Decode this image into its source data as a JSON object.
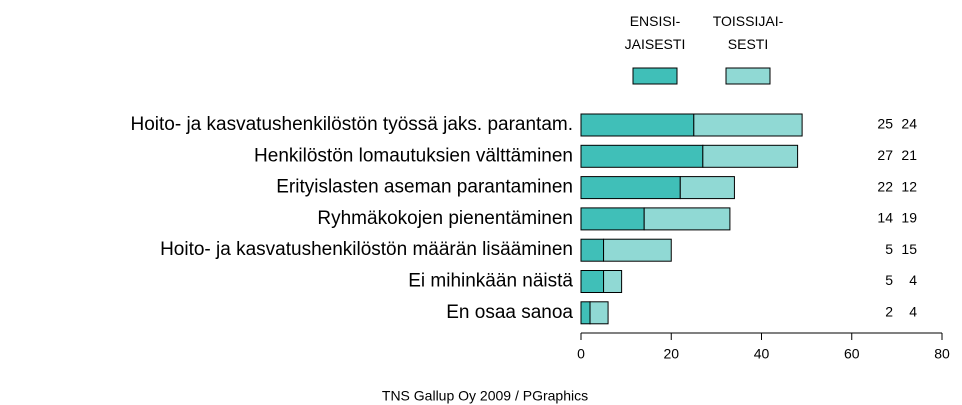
{
  "chart_data": {
    "type": "stacked-barh",
    "categories": [
      "Hoito- ja kasvatushenkilöstön työssä jaks. parantam.",
      "Henkilöstön lomautuksien välttäminen",
      "Erityislasten aseman parantaminen",
      "Ryhmäkokojen pienentäminen",
      "Hoito- ja kasvatushenkilöstön määrän lisääminen",
      "Ei mihinkään näistä",
      "En osaa sanoa"
    ],
    "series": [
      {
        "name": "ENSISI-\nJAISESTI",
        "color": "#40bfb8",
        "values": [
          25,
          27,
          22,
          14,
          5,
          5,
          2
        ]
      },
      {
        "name": "TOISSIJAI-\nSESTI",
        "color": "#90d9d4",
        "values": [
          24,
          21,
          12,
          19,
          15,
          4,
          4
        ]
      }
    ],
    "xlim": [
      0,
      80
    ],
    "xticks": [
      0,
      20,
      40,
      60,
      80
    ],
    "source": "TNS Gallup Oy 2009 / PGraphics"
  }
}
